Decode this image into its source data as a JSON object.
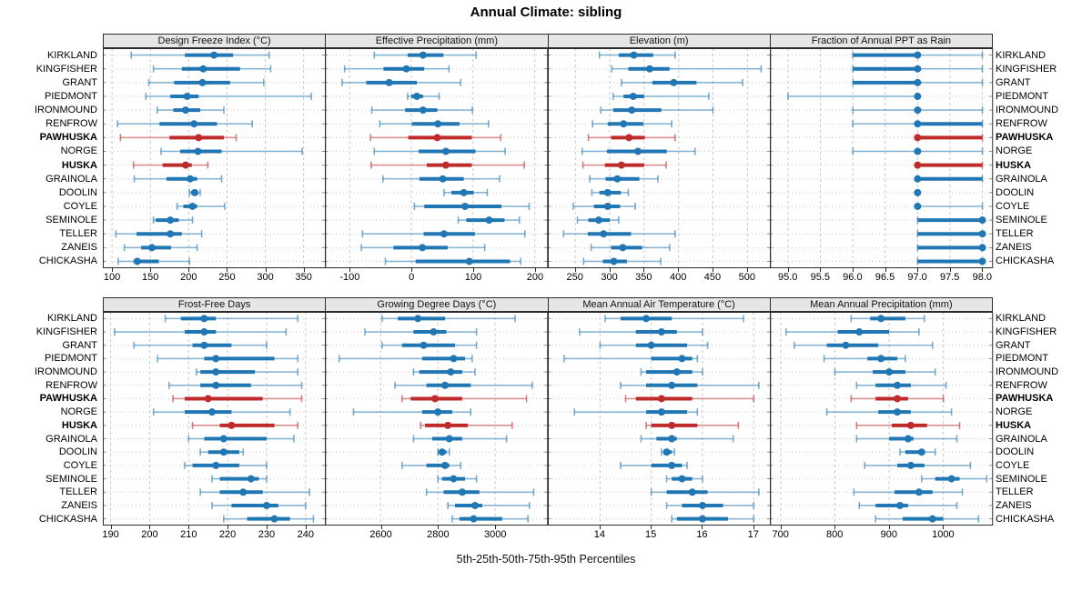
{
  "title": "Annual Climate: sibling",
  "footer": "5th-25th-50th-75th-95th Percentiles",
  "percentiles_order": [
    "5th",
    "25th",
    "50th",
    "75th",
    "95th"
  ],
  "sites": [
    "KIRKLAND",
    "KINGFISHER",
    "GRANT",
    "PIEDMONT",
    "IRONMOUND",
    "RENFROW",
    "PAWHUSKA",
    "NORGE",
    "HUSKA",
    "GRAINOLA",
    "DOOLIN",
    "COYLE",
    "SEMINOLE",
    "TELLER",
    "ZANEIS",
    "CHICKASHA"
  ],
  "highlighted_sites": [
    "PAWHUSKA",
    "HUSKA"
  ],
  "colors": {
    "normal": "#2077b4",
    "highlight": "#bf2b2b",
    "grid": "#c9c9c9",
    "panel_border": "#2b2b2b",
    "strip_bg": "#e6e6e6"
  },
  "chart_data": [
    {
      "type": "scatter",
      "title": "Design Freeze Index (°C)",
      "xlim": [
        88,
        378
      ],
      "ticks": [
        100,
        150,
        200,
        250,
        300,
        350
      ],
      "tick_labels": [
        "100",
        "150",
        "200",
        "250",
        "300",
        "350"
      ],
      "values": [
        [
          125,
          195,
          233,
          258,
          305
        ],
        [
          154,
          191,
          219,
          267,
          307
        ],
        [
          148,
          181,
          218,
          254,
          298
        ],
        [
          144,
          176,
          198,
          213,
          360
        ],
        [
          159,
          180,
          196,
          215,
          246
        ],
        [
          107,
          162,
          207,
          237,
          283
        ],
        [
          111,
          175,
          213,
          246,
          262
        ],
        [
          164,
          189,
          212,
          243,
          348
        ],
        [
          128,
          166,
          196,
          204,
          225
        ],
        [
          129,
          171,
          202,
          211,
          243
        ],
        [
          201,
          203,
          208,
          212,
          215
        ],
        [
          185,
          193,
          205,
          211,
          247
        ],
        [
          154,
          157,
          176,
          187,
          205
        ],
        [
          105,
          132,
          176,
          191,
          217
        ],
        [
          116,
          138,
          152,
          177,
          211
        ],
        [
          108,
          128,
          133,
          161,
          201
        ]
      ]
    },
    {
      "type": "scatter",
      "title": "Effective Precipitation (mm)",
      "xlim": [
        -140,
        220
      ],
      "ticks": [
        -100,
        0,
        100,
        200
      ],
      "tick_labels": [
        "-100",
        "0",
        "100",
        "200"
      ],
      "values": [
        [
          -60,
          -6,
          19,
          52,
          105
        ],
        [
          -108,
          -45,
          -8,
          21,
          61
        ],
        [
          -112,
          -73,
          -36,
          9,
          80
        ],
        [
          -6,
          0,
          9,
          19,
          45
        ],
        [
          -64,
          -10,
          19,
          42,
          99
        ],
        [
          -51,
          1,
          43,
          78,
          125
        ],
        [
          -66,
          -5,
          42,
          98,
          145
        ],
        [
          -60,
          12,
          56,
          104,
          152
        ],
        [
          -65,
          25,
          56,
          98,
          183
        ],
        [
          -46,
          13,
          51,
          85,
          143
        ],
        [
          53,
          65,
          85,
          101,
          123
        ],
        [
          5,
          21,
          87,
          146,
          191
        ],
        [
          76,
          89,
          126,
          151,
          175
        ],
        [
          -79,
          20,
          53,
          103,
          184
        ],
        [
          -81,
          -29,
          18,
          59,
          119
        ],
        [
          -42,
          7,
          94,
          160,
          177
        ]
      ]
    },
    {
      "type": "scatter",
      "title": "Elevation (m)",
      "xlim": [
        210,
        533
      ],
      "ticks": [
        250,
        300,
        350,
        400,
        450,
        500
      ],
      "tick_labels": [
        "250",
        "300",
        "350",
        "400",
        "450",
        "500"
      ],
      "values": [
        [
          285,
          313,
          335,
          363,
          395
        ],
        [
          303,
          327,
          358,
          387,
          520
        ],
        [
          317,
          362,
          393,
          426,
          493
        ],
        [
          305,
          320,
          334,
          350,
          444
        ],
        [
          287,
          305,
          332,
          375,
          450
        ],
        [
          275,
          297,
          320,
          349,
          390
        ],
        [
          269,
          302,
          328,
          351,
          395
        ],
        [
          260,
          296,
          341,
          383,
          424
        ],
        [
          261,
          293,
          317,
          350,
          382
        ],
        [
          271,
          294,
          311,
          343,
          370
        ],
        [
          274,
          285,
          297,
          316,
          327
        ],
        [
          247,
          277,
          297,
          315,
          337
        ],
        [
          253,
          269,
          284,
          300,
          313
        ],
        [
          233,
          268,
          291,
          331,
          395
        ],
        [
          273,
          302,
          319,
          347,
          387
        ],
        [
          262,
          290,
          306,
          325,
          374
        ]
      ]
    },
    {
      "type": "scatter",
      "title": "Fraction of Annual PPT as Rain",
      "xlim": [
        94.72,
        98.15
      ],
      "ticks": [
        95.0,
        95.5,
        96.0,
        96.5,
        97.0,
        97.5,
        98.0
      ],
      "tick_labels": [
        "95.0",
        "95.5",
        "96.0",
        "96.5",
        "97.0",
        "97.5",
        "98.0"
      ],
      "values": [
        [
          96,
          96,
          97,
          97,
          98
        ],
        [
          96,
          96,
          97,
          97,
          98
        ],
        [
          96,
          96,
          97,
          97,
          98
        ],
        [
          95,
          97,
          97,
          97,
          97
        ],
        [
          96,
          97,
          97,
          97,
          98
        ],
        [
          96,
          97,
          97,
          98,
          98
        ],
        [
          97,
          97,
          97,
          98,
          98
        ],
        [
          96,
          97,
          97,
          97,
          98
        ],
        [
          97,
          97,
          97,
          98,
          98
        ],
        [
          97,
          97,
          97,
          98,
          98
        ],
        [
          97,
          97,
          97,
          97,
          97
        ],
        [
          97,
          97,
          97,
          97,
          98
        ],
        [
          97,
          97,
          98,
          98,
          98
        ],
        [
          97,
          97,
          98,
          98,
          98
        ],
        [
          97,
          97,
          98,
          98,
          98
        ],
        [
          97,
          97,
          98,
          98,
          98
        ]
      ]
    },
    {
      "type": "scatter",
      "title": "Frost-Free Days",
      "xlim": [
        188,
        245
      ],
      "ticks": [
        190,
        200,
        210,
        220,
        230,
        240
      ],
      "tick_labels": [
        "190",
        "200",
        "210",
        "220",
        "230",
        "240"
      ],
      "values": [
        [
          204,
          208,
          214,
          217,
          238
        ],
        [
          191,
          209,
          214,
          217,
          235
        ],
        [
          196,
          211,
          214,
          221,
          230
        ],
        [
          202,
          214,
          217,
          232,
          238
        ],
        [
          212,
          213,
          217,
          227,
          238
        ],
        [
          205,
          213,
          217,
          226,
          239
        ],
        [
          206,
          209,
          215,
          229,
          239
        ],
        [
          201,
          209,
          216,
          221,
          236
        ],
        [
          211,
          218,
          221,
          232,
          238
        ],
        [
          210,
          214,
          219,
          230,
          237
        ],
        [
          213,
          215,
          219,
          223,
          224
        ],
        [
          209,
          211,
          217,
          223,
          230
        ],
        [
          216,
          218,
          226,
          228,
          230
        ],
        [
          213,
          218,
          224,
          229,
          241
        ],
        [
          216,
          221,
          230,
          233,
          240
        ],
        [
          219,
          225,
          232,
          236,
          242
        ]
      ]
    },
    {
      "type": "scatter",
      "title": "Growing Degree Days (°C)",
      "xlim": [
        2405,
        3182
      ],
      "ticks": [
        2600,
        2800,
        3000
      ],
      "tick_labels": [
        "2600",
        "2800",
        "3000"
      ],
      "values": [
        [
          2605,
          2660,
          2730,
          2825,
          3070
        ],
        [
          2545,
          2715,
          2785,
          2830,
          2935
        ],
        [
          2605,
          2675,
          2750,
          2860,
          2935
        ],
        [
          2455,
          2745,
          2855,
          2895,
          2920
        ],
        [
          2715,
          2735,
          2845,
          2885,
          2930
        ],
        [
          2650,
          2760,
          2825,
          2915,
          3130
        ],
        [
          2675,
          2705,
          2790,
          2885,
          3110
        ],
        [
          2505,
          2745,
          2800,
          2850,
          2915
        ],
        [
          2740,
          2755,
          2835,
          2905,
          3060
        ],
        [
          2715,
          2780,
          2840,
          2885,
          3040
        ],
        [
          2800,
          2802,
          2815,
          2830,
          2840
        ],
        [
          2675,
          2760,
          2825,
          2840,
          2880
        ],
        [
          2800,
          2815,
          2855,
          2895,
          2935
        ],
        [
          2760,
          2820,
          2885,
          2945,
          3135
        ],
        [
          2835,
          2860,
          2930,
          2955,
          3120
        ],
        [
          2850,
          2875,
          2925,
          3025,
          3115
        ]
      ]
    },
    {
      "type": "scatter",
      "title": "Mean Annual Air Temperature (°C)",
      "xlim": [
        12.98,
        17.32
      ],
      "ticks": [
        14,
        15,
        16,
        17
      ],
      "tick_labels": [
        "14",
        "15",
        "16",
        "17"
      ],
      "values": [
        [
          14.1,
          14.4,
          14.9,
          15.4,
          16.8
        ],
        [
          13.6,
          14.7,
          15.2,
          15.5,
          16.0
        ],
        [
          14.0,
          14.7,
          15.0,
          15.7,
          16.1
        ],
        [
          13.3,
          15.0,
          15.6,
          15.8,
          15.9
        ],
        [
          14.8,
          14.9,
          15.5,
          15.8,
          16.0
        ],
        [
          14.4,
          14.9,
          15.4,
          15.9,
          17.1
        ],
        [
          14.5,
          14.7,
          15.2,
          15.8,
          17.0
        ],
        [
          13.5,
          14.9,
          15.2,
          15.7,
          15.9
        ],
        [
          14.9,
          15.0,
          15.4,
          15.9,
          16.7
        ],
        [
          14.8,
          15.1,
          15.4,
          15.5,
          16.6
        ],
        [
          15.2,
          15.25,
          15.3,
          15.4,
          15.45
        ],
        [
          14.4,
          15.0,
          15.4,
          15.6,
          15.7
        ],
        [
          15.3,
          15.4,
          15.6,
          15.8,
          16.0
        ],
        [
          15.0,
          15.3,
          15.8,
          16.1,
          17.1
        ],
        [
          15.3,
          15.6,
          16.0,
          16.4,
          17.0
        ],
        [
          15.4,
          15.5,
          16.0,
          16.5,
          17.0
        ]
      ]
    },
    {
      "type": "scatter",
      "title": "Mean Annual Precipitation (mm)",
      "xlim": [
        680,
        1090
      ],
      "ticks": [
        700,
        800,
        900,
        1000
      ],
      "tick_labels": [
        "700",
        "800",
        "900",
        "1000"
      ],
      "values": [
        [
          830,
          865,
          885,
          930,
          965
        ],
        [
          710,
          805,
          845,
          900,
          955
        ],
        [
          725,
          785,
          820,
          880,
          980
        ],
        [
          780,
          860,
          885,
          915,
          930
        ],
        [
          800,
          870,
          900,
          930,
          985
        ],
        [
          840,
          875,
          915,
          940,
          1005
        ],
        [
          830,
          875,
          915,
          935,
          1000
        ],
        [
          785,
          880,
          915,
          940,
          1015
        ],
        [
          840,
          905,
          940,
          970,
          1030
        ],
        [
          840,
          900,
          935,
          945,
          1025
        ],
        [
          920,
          930,
          960,
          965,
          985
        ],
        [
          855,
          915,
          940,
          965,
          1050
        ],
        [
          960,
          985,
          1015,
          1030,
          1080
        ],
        [
          835,
          910,
          955,
          980,
          1035
        ],
        [
          845,
          875,
          920,
          935,
          1025
        ],
        [
          875,
          925,
          980,
          1000,
          1065
        ]
      ]
    }
  ]
}
